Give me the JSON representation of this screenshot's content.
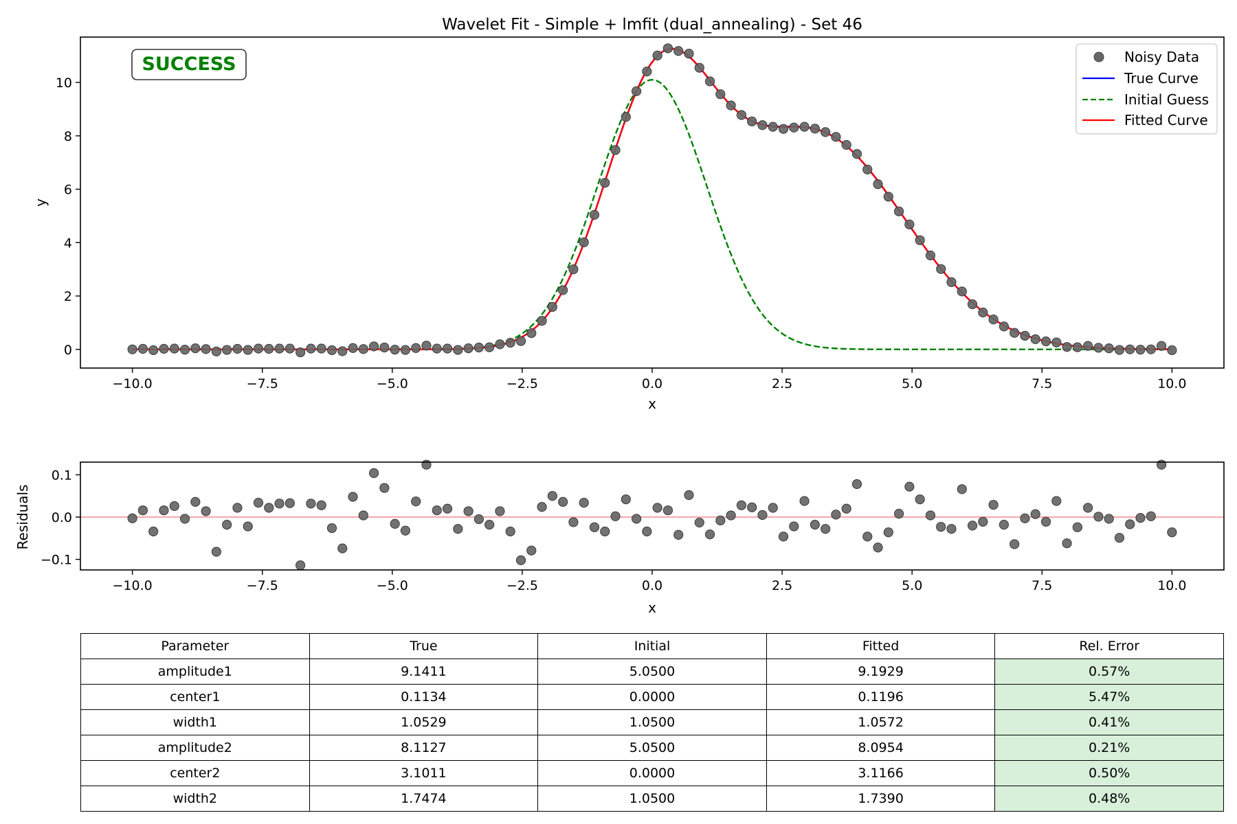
{
  "chart_data": [
    {
      "type": "line",
      "title": "Wavelet Fit - Simple + lmfit (dual_annealing) - Set 46",
      "xlabel": "x",
      "ylabel": "y",
      "xlim": [
        -11,
        11
      ],
      "ylim": [
        -0.7,
        11.7
      ],
      "x_ticks": [
        "−10.0",
        "−7.5",
        "−5.0",
        "−2.5",
        "0.0",
        "2.5",
        "5.0",
        "7.5",
        "10.0"
      ],
      "y_ticks": [
        "0",
        "2",
        "4",
        "6",
        "8",
        "10"
      ],
      "x_tick_values": [
        -10,
        -7.5,
        -5,
        -2.5,
        0,
        2.5,
        5,
        7.5,
        10
      ],
      "y_tick_values": [
        0,
        2,
        4,
        6,
        8,
        10
      ],
      "badge": "SUCCESS",
      "legend": {
        "placement": "top-right",
        "entries": [
          "Noisy Data",
          "True Curve",
          "Initial Guess",
          "Fitted Curve"
        ]
      },
      "x_range": [
        -10,
        10
      ],
      "n_points": 100,
      "series": [
        {
          "name": "Noisy Data",
          "kind": "scatter",
          "color": "#666666",
          "y": [
            0.0,
            0.02,
            -0.03,
            0.02,
            0.03,
            -0.01,
            0.04,
            0.01,
            -0.08,
            -0.02,
            0.02,
            -0.02,
            0.03,
            0.02,
            0.03,
            0.03,
            -0.11,
            0.03,
            0.03,
            -0.03,
            -0.07,
            0.05,
            0.01,
            0.11,
            0.07,
            -0.01,
            -0.02,
            0.05,
            0.14,
            0.03,
            0.03,
            -0.02,
            0.04,
            0.07,
            0.08,
            0.19,
            0.25,
            0.31,
            0.61,
            1.07,
            1.59,
            2.22,
            3.0,
            4.01,
            5.04,
            6.24,
            7.47,
            8.71,
            9.67,
            10.41,
            11.01,
            11.28,
            11.18,
            11.08,
            10.55,
            10.04,
            9.56,
            9.14,
            8.78,
            8.54,
            8.4,
            8.34,
            8.26,
            8.31,
            8.34,
            8.27,
            8.14,
            7.96,
            7.66,
            7.32,
            6.74,
            6.19,
            5.72,
            5.17,
            4.68,
            4.09,
            3.52,
            3.01,
            2.52,
            2.17,
            1.69,
            1.38,
            1.12,
            0.86,
            0.62,
            0.51,
            0.38,
            0.3,
            0.26,
            0.09,
            0.08,
            0.13,
            0.06,
            0.04,
            -0.02,
            0.0,
            -0.01,
            0.0,
            0.13,
            -0.03
          ]
        },
        {
          "name": "True Curve",
          "kind": "line",
          "color": "#0000ff",
          "style": "solid",
          "params": {
            "amplitude1": 9.1411,
            "center1": 0.1134,
            "width1": 1.0529,
            "amplitude2": 8.1127,
            "center2": 3.1011,
            "width2": 1.7474
          }
        },
        {
          "name": "Initial Guess",
          "kind": "line",
          "color": "#008000",
          "style": "dashed",
          "params": {
            "amplitude1": 5.05,
            "center1": 0.0,
            "width1": 1.05,
            "amplitude2": 5.05,
            "center2": 0.0,
            "width2": 1.05
          }
        },
        {
          "name": "Fitted Curve",
          "kind": "line",
          "color": "#ff0000",
          "style": "solid",
          "params": {
            "amplitude1": 9.1929,
            "center1": 0.1196,
            "width1": 1.0572,
            "amplitude2": 8.0954,
            "center2": 3.1166,
            "width2": 1.739
          }
        }
      ]
    },
    {
      "type": "scatter",
      "title": "",
      "xlabel": "x",
      "ylabel": "Residuals",
      "xlim": [
        -11,
        11
      ],
      "ylim": [
        -0.125,
        0.13
      ],
      "x_ticks": [
        "−10.0",
        "−7.5",
        "−5.0",
        "−2.5",
        "0.0",
        "2.5",
        "5.0",
        "7.5",
        "10.0"
      ],
      "y_ticks": [
        "−0.1",
        "0.0",
        "0.1"
      ],
      "x_tick_values": [
        -10,
        -7.5,
        -5,
        -2.5,
        0,
        2.5,
        5,
        7.5,
        10
      ],
      "y_tick_values": [
        -0.1,
        0,
        0.1
      ],
      "zero_line_color": "#f4a6a6",
      "series": [
        {
          "name": "Residuals",
          "color": "#666666",
          "y": [
            -0.003,
            0.016,
            -0.034,
            0.016,
            0.026,
            -0.004,
            0.036,
            0.014,
            -0.082,
            -0.018,
            0.022,
            -0.022,
            0.034,
            0.022,
            0.032,
            0.033,
            -0.114,
            0.032,
            0.028,
            -0.026,
            -0.074,
            0.048,
            0.004,
            0.104,
            0.069,
            -0.016,
            -0.032,
            0.037,
            0.124,
            0.016,
            0.02,
            -0.028,
            0.014,
            -0.005,
            -0.018,
            0.014,
            -0.034,
            -0.102,
            -0.079,
            0.024,
            0.05,
            0.036,
            -0.012,
            0.034,
            -0.024,
            -0.034,
            0.002,
            0.042,
            -0.004,
            -0.034,
            0.022,
            0.016,
            -0.042,
            0.052,
            -0.013,
            -0.041,
            -0.008,
            0.004,
            0.028,
            0.023,
            0.005,
            0.022,
            -0.046,
            -0.022,
            0.038,
            -0.018,
            -0.028,
            0.006,
            0.02,
            0.078,
            -0.046,
            -0.072,
            -0.036,
            0.008,
            0.072,
            0.042,
            0.004,
            -0.023,
            -0.028,
            0.066,
            -0.02,
            -0.011,
            0.029,
            -0.018,
            -0.064,
            -0.003,
            0.007,
            -0.011,
            0.038,
            -0.062,
            -0.024,
            0.022,
            0.001,
            -0.004,
            -0.049,
            -0.017,
            -0.002,
            0.002,
            0.124,
            -0.036
          ]
        }
      ]
    },
    {
      "type": "table",
      "columns": [
        "Parameter",
        "True",
        "Initial",
        "Fitted",
        "Rel. Error"
      ],
      "rows": [
        [
          "amplitude1",
          "9.1411",
          "5.0500",
          "9.1929",
          "0.57%"
        ],
        [
          "center1",
          "0.1134",
          "0.0000",
          "0.1196",
          "5.47%"
        ],
        [
          "width1",
          "1.0529",
          "1.0500",
          "1.0572",
          "0.41%"
        ],
        [
          "amplitude2",
          "8.1127",
          "5.0500",
          "8.0954",
          "0.21%"
        ],
        [
          "center2",
          "3.1011",
          "0.0000",
          "3.1166",
          "0.50%"
        ],
        [
          "width2",
          "1.7474",
          "1.0500",
          "1.7390",
          "0.48%"
        ]
      ],
      "highlight_color": "#d8f0da"
    }
  ]
}
